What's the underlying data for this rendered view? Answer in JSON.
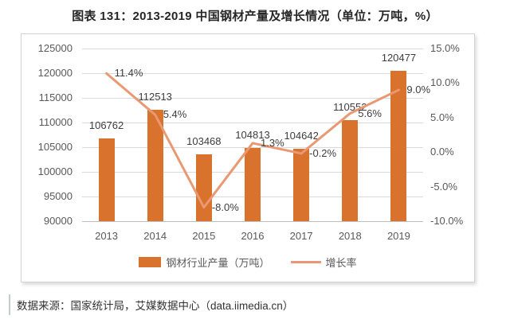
{
  "title": "图表 131：2013-2019 中国钢材产量及增长情况（单位：万吨，%）",
  "source": "数据来源：国家统计局，艾媒数据中心（data.iimedia.cn）",
  "colors": {
    "bar": "#d8722d",
    "line": "#ea9873",
    "grid": "#d9d9d9",
    "axis_line": "#bfbfbf",
    "axis_text": "#595959",
    "data_label_text": "#3d3d3d",
    "title_text": "#262626"
  },
  "chart_data": {
    "type": "combo",
    "categories": [
      "2013",
      "2014",
      "2015",
      "2016",
      "2017",
      "2018",
      "2019"
    ],
    "series": [
      {
        "name": "钢材行业产量（万吨）",
        "type": "bar",
        "axis": "left",
        "color": "#d8722d",
        "values": [
          106762,
          112513,
          103468,
          104813,
          104642,
          110552,
          120477
        ]
      },
      {
        "name": "增长率",
        "type": "line",
        "axis": "right",
        "color": "#ea9873",
        "values": [
          11.4,
          5.4,
          -8.0,
          1.3,
          -0.2,
          5.6,
          9.0
        ]
      }
    ],
    "bar_labels": [
      "106762",
      "112513",
      "103468",
      "104813",
      "104642",
      "110552",
      "120477"
    ],
    "line_labels": [
      "11.4%",
      "5.4%",
      "-8.0%",
      "1.3%",
      "-0.2%",
      "5.6%",
      "9.0%"
    ],
    "left_axis": {
      "min": 90000,
      "max": 125000,
      "step": 5000,
      "ticks": [
        "125000",
        "120000",
        "115000",
        "110000",
        "105000",
        "100000",
        "95000",
        "90000"
      ]
    },
    "right_axis": {
      "min": -10,
      "max": 15,
      "step": 5,
      "ticks": [
        "15.0%",
        "10.0%",
        "5.0%",
        "0.0%",
        "-5.0%",
        "-10.0%"
      ]
    },
    "legend": [
      {
        "label": "钢材行业产量（万吨）",
        "swatch": "bar"
      },
      {
        "label": "增长率",
        "swatch": "line"
      }
    ],
    "grid": true,
    "legend_position": "bottom"
  }
}
